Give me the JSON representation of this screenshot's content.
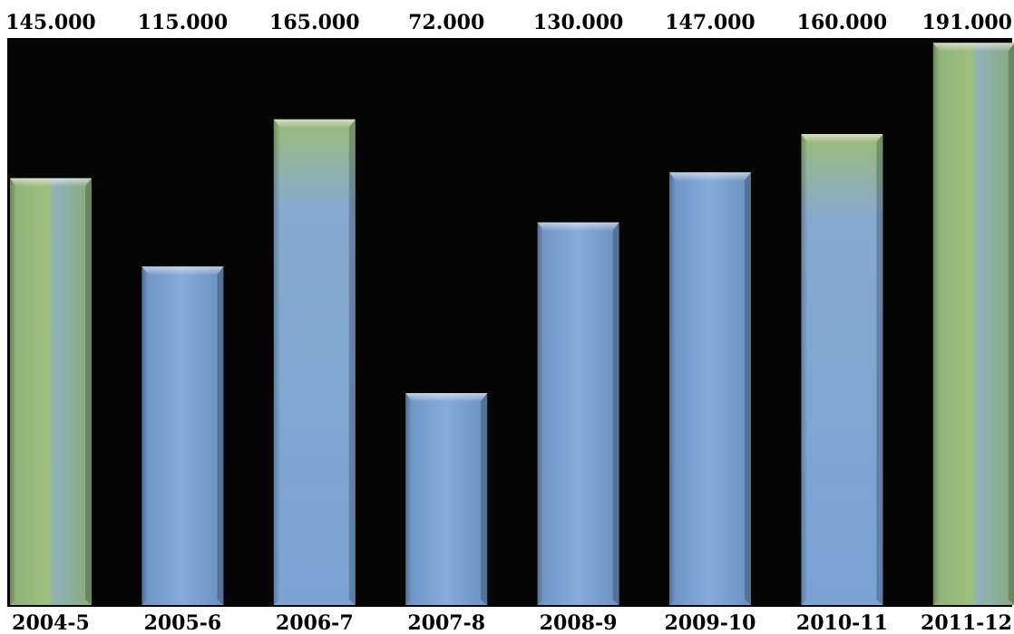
{
  "chart_data": {
    "type": "bar",
    "title": "",
    "xlabel": "",
    "ylabel": "",
    "categories": [
      "2004-5",
      "2005-6",
      "2006-7",
      "2007-8",
      "2008-9",
      "2009-10",
      "2010-11",
      "2011-12"
    ],
    "values": [
      145000,
      115000,
      165000,
      72000,
      130000,
      147000,
      160000,
      191000
    ],
    "data_labels": [
      "145.000",
      "115.000",
      "165.000",
      "72.000",
      "130.000",
      "147.000",
      "160.000",
      "191.000"
    ],
    "ylim": [
      0,
      192000
    ],
    "grid": false,
    "legend": "none",
    "colors": {
      "plot_background": "#050505",
      "bar_blue": "#7aa3d4",
      "bar_green": "#9fbf6a",
      "label_text": "#000000"
    },
    "bar_tints": [
      "green",
      "blue",
      "mixed",
      "blue",
      "blue",
      "blue",
      "mixed",
      "green"
    ]
  }
}
